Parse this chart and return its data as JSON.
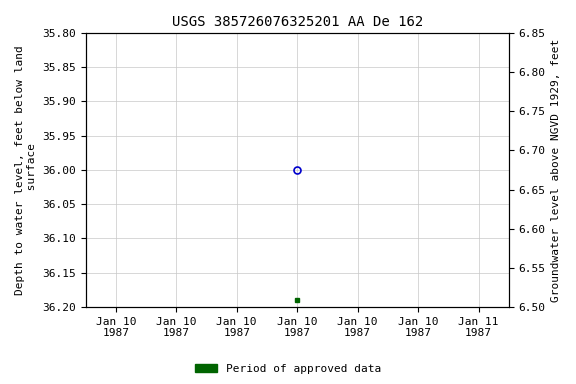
{
  "title": "USGS 385726076325201 AA De 162",
  "left_ylabel": "Depth to water level, feet below land\n surface",
  "right_ylabel": "Groundwater level above NGVD 1929, feet",
  "ylim_left": [
    35.8,
    36.2
  ],
  "ylim_right": [
    6.5,
    6.85
  ],
  "left_yticks": [
    35.8,
    35.85,
    35.9,
    35.95,
    36.0,
    36.05,
    36.1,
    36.15,
    36.2
  ],
  "right_yticks": [
    6.5,
    6.55,
    6.6,
    6.65,
    6.7,
    6.75,
    6.8,
    6.85
  ],
  "data_point_x": 3,
  "data_point_y": 36.0,
  "data_point_color": "#0000cc",
  "approved_point_x": 3,
  "approved_point_y": 36.19,
  "approved_point_color": "#006400",
  "background_color": "#ffffff",
  "grid_color": "#c8c8c8",
  "title_fontsize": 10,
  "axis_label_fontsize": 8,
  "tick_fontsize": 8,
  "legend_label": "Period of approved data",
  "legend_color": "#006400",
  "x_tick_labels": [
    "Jan 10\n1987",
    "Jan 10\n1987",
    "Jan 10\n1987",
    "Jan 10\n1987",
    "Jan 10\n1987",
    "Jan 10\n1987",
    "Jan 11\n1987"
  ],
  "xlim": [
    -0.5,
    6.5
  ],
  "x_ticks": [
    0,
    1,
    2,
    3,
    4,
    5,
    6
  ]
}
